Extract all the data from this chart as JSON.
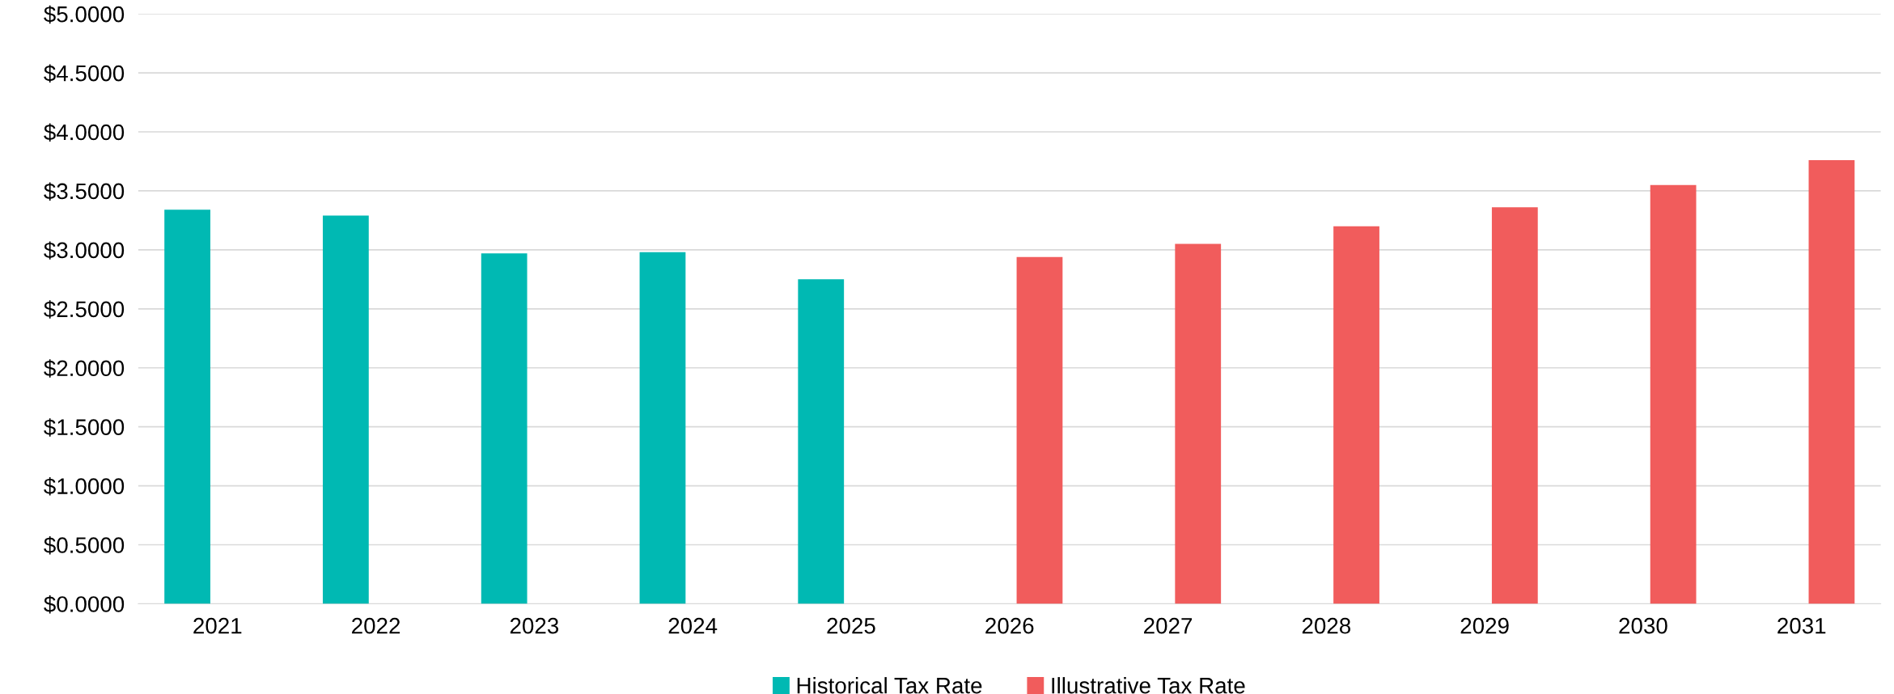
{
  "chart_data": {
    "type": "bar",
    "categories": [
      "2021",
      "2022",
      "2023",
      "2024",
      "2025",
      "2026",
      "2027",
      "2028",
      "2029",
      "2030",
      "2031"
    ],
    "series": [
      {
        "name": "Historical Tax Rate",
        "color": "#00b9b3",
        "values": [
          3.34,
          3.29,
          2.97,
          2.98,
          2.75,
          null,
          null,
          null,
          null,
          null,
          null
        ]
      },
      {
        "name": "Illustrative Tax Rate",
        "color": "#f15c5c",
        "values": [
          null,
          null,
          null,
          null,
          null,
          2.94,
          3.05,
          3.2,
          3.36,
          3.55,
          3.76
        ]
      }
    ],
    "ylim": [
      0,
      5
    ],
    "yticks": [
      {
        "value": 0,
        "label": "$0.0000"
      },
      {
        "value": 0.5,
        "label": "$0.5000"
      },
      {
        "value": 1,
        "label": "$1.0000"
      },
      {
        "value": 1.5,
        "label": "$1.5000"
      },
      {
        "value": 2,
        "label": "$2.0000"
      },
      {
        "value": 2.5,
        "label": "$2.5000"
      },
      {
        "value": 3,
        "label": "$3.0000"
      },
      {
        "value": 3.5,
        "label": "$3.5000"
      },
      {
        "value": 4,
        "label": "$4.0000"
      },
      {
        "value": 4.5,
        "label": "$4.5000"
      },
      {
        "value": 5,
        "label": "$5.0000"
      }
    ],
    "grid": "y",
    "legend": "bottom"
  }
}
